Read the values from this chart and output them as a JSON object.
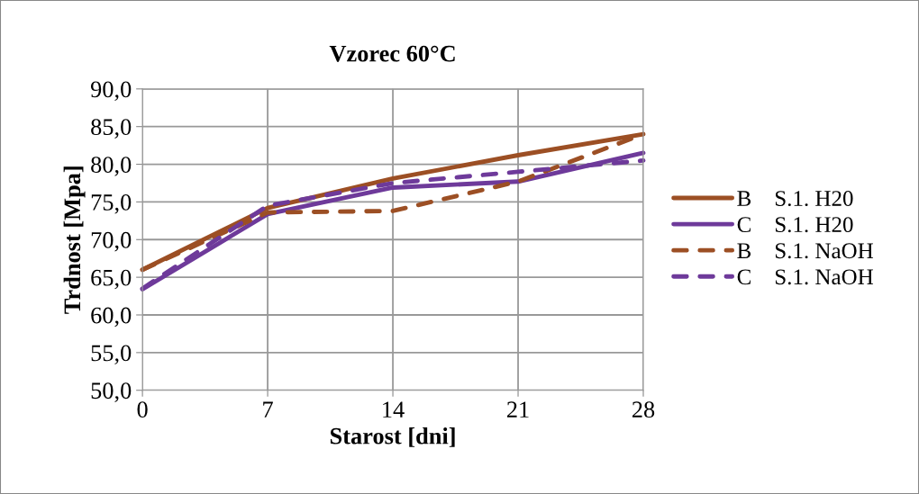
{
  "chart_data": {
    "type": "line",
    "title": "Vzorec 60°C",
    "xlabel": "Starost [dni]",
    "ylabel": "Trdnost [Mpa]",
    "x": [
      0,
      7,
      14,
      21,
      28
    ],
    "series": [
      {
        "name": "B    S.1. H20",
        "color": "#9c4f24",
        "line_style": "solid",
        "values": [
          66.0,
          74.2,
          78.1,
          81.2,
          84.0
        ]
      },
      {
        "name": "C    S.1. H20",
        "color": "#6e3a9a",
        "line_style": "solid",
        "values": [
          63.4,
          73.4,
          76.9,
          77.7,
          81.5
        ]
      },
      {
        "name": "B    S.1. NaOH",
        "color": "#9c4f24",
        "line_style": "dashed",
        "values": [
          66.0,
          73.6,
          73.8,
          77.7,
          84.0
        ]
      },
      {
        "name": "C    S.1. NaOH",
        "color": "#6e3a9a",
        "line_style": "dashed",
        "values": [
          63.5,
          74.5,
          77.5,
          79.0,
          80.5
        ]
      }
    ],
    "xlim": [
      0,
      28
    ],
    "xticks": [
      0,
      7,
      14,
      21,
      28
    ],
    "ylim": [
      50,
      90
    ],
    "yticks": [
      {
        "value": 50,
        "label": "50,0"
      },
      {
        "value": 55,
        "label": "55,0"
      },
      {
        "value": 60,
        "label": "60,0"
      },
      {
        "value": 65,
        "label": "65,0"
      },
      {
        "value": 70,
        "label": "70,0"
      },
      {
        "value": 75,
        "label": "75,0"
      },
      {
        "value": 80,
        "label": "80,0"
      },
      {
        "value": 85,
        "label": "85,0"
      },
      {
        "value": 90,
        "label": "90,0"
      }
    ],
    "grid": true,
    "legend": "right",
    "marker": "none"
  }
}
